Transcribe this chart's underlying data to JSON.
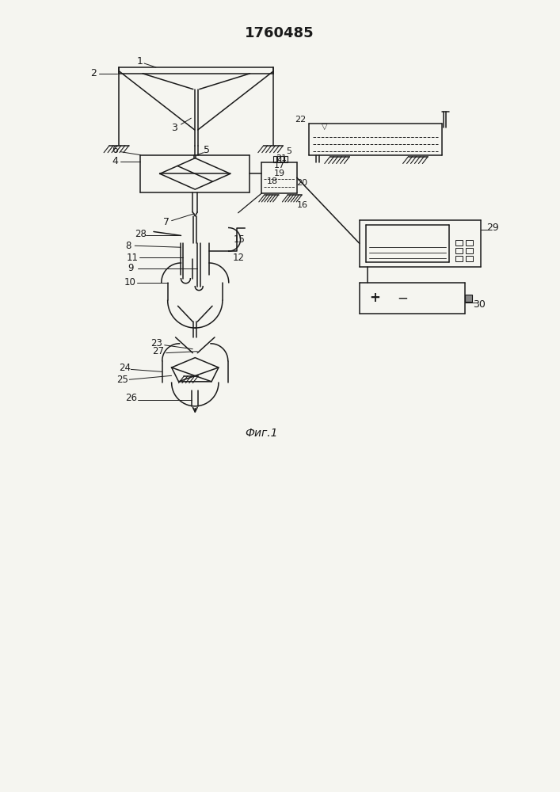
{
  "title": "1760485",
  "fig_label": "Фиг.1",
  "bg_color": "#f5f5f0",
  "line_color": "#1a1a1a",
  "title_fontsize": 13,
  "label_fontsize": 8.5
}
